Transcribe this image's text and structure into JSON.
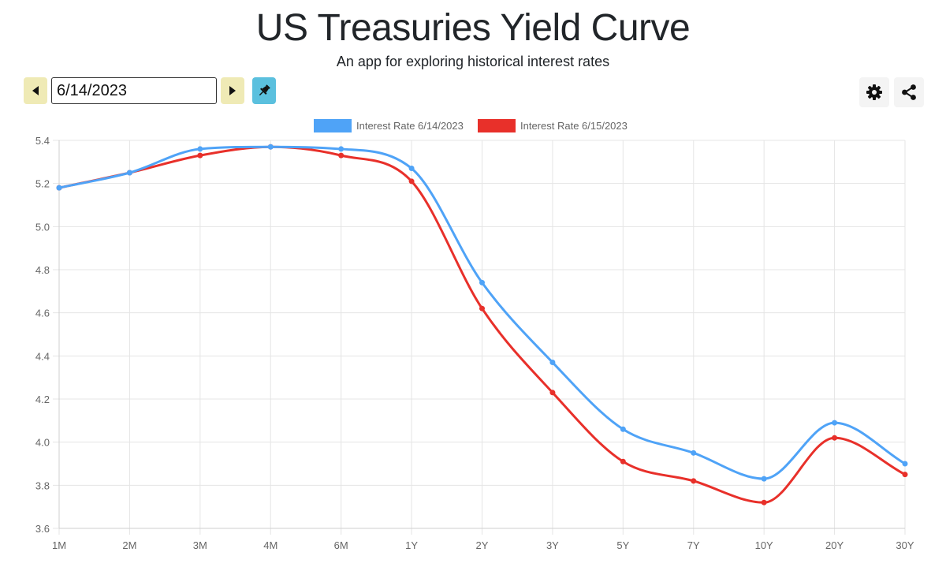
{
  "header": {
    "title": "US Treasuries Yield Curve",
    "subtitle": "An app for exploring historical interest rates"
  },
  "controls": {
    "date_value": "6/14/2023",
    "prev_icon": "caret-left-icon",
    "next_icon": "caret-right-icon",
    "pin_icon": "pin-icon",
    "settings_icon": "gear-icon",
    "share_icon": "share-icon"
  },
  "colors": {
    "series1": "#4fa3f7",
    "series2": "#e8302a",
    "grid": "#e5e5e5",
    "tick": "#666666"
  },
  "chart_data": {
    "type": "line",
    "title": "",
    "xlabel": "",
    "ylabel": "",
    "categories": [
      "1M",
      "2M",
      "3M",
      "4M",
      "6M",
      "1Y",
      "2Y",
      "3Y",
      "5Y",
      "7Y",
      "10Y",
      "20Y",
      "30Y"
    ],
    "ylim": [
      3.6,
      5.4
    ],
    "yticks": [
      "5.4",
      "5.2",
      "5.0",
      "4.8",
      "4.6",
      "4.4",
      "4.2",
      "4.0",
      "3.8",
      "3.6"
    ],
    "grid": true,
    "legend_position": "top-center",
    "series": [
      {
        "name": "Interest Rate 6/14/2023",
        "values": [
          5.18,
          5.25,
          5.36,
          5.37,
          5.36,
          5.27,
          4.74,
          4.37,
          4.06,
          3.95,
          3.83,
          4.09,
          3.9
        ]
      },
      {
        "name": "Interest Rate 6/15/2023",
        "values": [
          5.18,
          5.25,
          5.33,
          5.37,
          5.33,
          5.21,
          4.62,
          4.23,
          3.91,
          3.82,
          3.72,
          4.02,
          3.85
        ]
      }
    ]
  }
}
